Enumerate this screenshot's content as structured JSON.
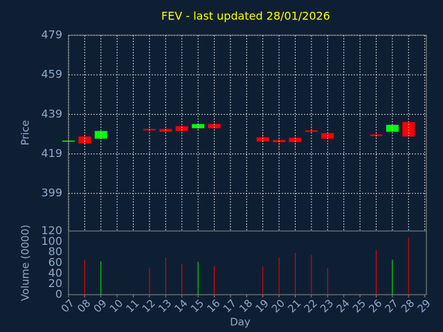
{
  "chart_data": [
    {
      "type": "candlestick",
      "title": "FEV - last updated 28/01/2026",
      "ylabel": "Price",
      "x": [
        7,
        8,
        9,
        12,
        13,
        14,
        15,
        16,
        19,
        20,
        21,
        22,
        23,
        26,
        27,
        28
      ],
      "open": [
        425.5,
        427.8,
        426.7,
        431.6,
        431.6,
        433.0,
        432.0,
        434.1,
        427.4,
        426.0,
        427.1,
        430.9,
        429.5,
        428.8,
        430.2,
        435.1
      ],
      "high": [
        425.7,
        428.5,
        430.6,
        433.0,
        432.3,
        433.4,
        434.5,
        434.8,
        429.2,
        426.7,
        427.8,
        433.7,
        429.5,
        429.9,
        433.7,
        435.1
      ],
      "low": [
        425.5,
        423.6,
        426.7,
        430.2,
        430.2,
        430.2,
        431.6,
        431.6,
        425.0,
        421.5,
        421.8,
        429.2,
        426.7,
        427.1,
        430.2,
        427.8
      ],
      "close": [
        425.7,
        424.3,
        430.6,
        430.9,
        430.2,
        430.6,
        434.1,
        432.0,
        425.3,
        425.0,
        425.0,
        430.2,
        426.7,
        428.1,
        433.7,
        427.8
      ],
      "up_color": "#00ff00",
      "down_color": "#ff0000",
      "xlim": [
        7,
        29.1
      ],
      "ylim": [
        380,
        479
      ],
      "yticks": [
        399,
        419,
        439,
        459,
        479
      ],
      "grid": true
    },
    {
      "type": "volume",
      "xlabel": "Day",
      "ylabel": "Volume (0000)",
      "x": [
        7,
        8,
        9,
        12,
        13,
        14,
        15,
        16,
        19,
        20,
        21,
        22,
        23,
        26,
        27,
        28
      ],
      "values": [
        null,
        66,
        63,
        50,
        70,
        58,
        62,
        54,
        53,
        70,
        79,
        75,
        50,
        84,
        66,
        108
      ],
      "xlim": [
        7,
        29.1
      ],
      "ylim": [
        0,
        120
      ],
      "yticks": [
        0,
        20,
        40,
        60,
        80,
        100,
        120
      ],
      "xticks": [
        {
          "value": 7,
          "label": "07"
        },
        {
          "value": 8,
          "label": "08"
        },
        {
          "value": 9,
          "label": "09"
        },
        10,
        11,
        12,
        13,
        14,
        15,
        16,
        17,
        18,
        19,
        20,
        21,
        22,
        23,
        24,
        25,
        26,
        27,
        28,
        29
      ]
    }
  ]
}
